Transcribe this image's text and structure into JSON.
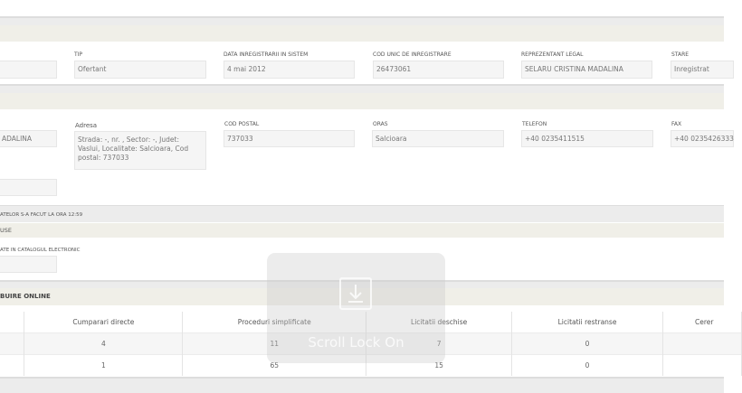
{
  "section_general": {
    "fields": [
      {
        "label": "TIP",
        "value": "Ofertant"
      },
      {
        "label": "DATA INREGISTRARII IN SISTEM",
        "value": "4 mai 2012"
      },
      {
        "label": "COD UNIC DE INREGISTRARE",
        "value": "26473061"
      },
      {
        "label": "REPREZENTANT LEGAL",
        "value": "SELARU CRISTINA MADALINA"
      },
      {
        "label": "STARE",
        "value": "Inregistrat"
      }
    ]
  },
  "section_contact": {
    "partial_value": "ADALINA",
    "fields": [
      {
        "label": "Adresa",
        "value": "Strada: -, nr. , Sector: -, Judet: Vaslui, Localitate: Salcioara, Cod postal: 737033"
      },
      {
        "label": "COD POSTAL",
        "value": "737033"
      },
      {
        "label": "ORAS",
        "value": "Salcioara"
      },
      {
        "label": "TELEFON",
        "value": "+40 0235411515"
      },
      {
        "label": "FAX",
        "value": "+40 0235426333"
      }
    ]
  },
  "update_bar": "ATELOR S-A FACUT LA ORA 12:59",
  "section_products": {
    "title": "USE",
    "label": "ATE IN CATALOGUL ELECTRONIC"
  },
  "section_online": {
    "title": "BUIRE ONLINE",
    "columns": [
      "",
      "Cumparari directe",
      "Proceduri simplificate",
      "Licitatii deschise",
      "Licitatii restranse",
      "Cerer"
    ],
    "rows": [
      [
        "",
        "4",
        "11",
        "7",
        "0",
        ""
      ],
      [
        "",
        "1",
        "65",
        "15",
        "0",
        ""
      ]
    ]
  },
  "overlay": {
    "text": "Scroll Lock On",
    "icon": "scroll-lock-download-icon"
  }
}
